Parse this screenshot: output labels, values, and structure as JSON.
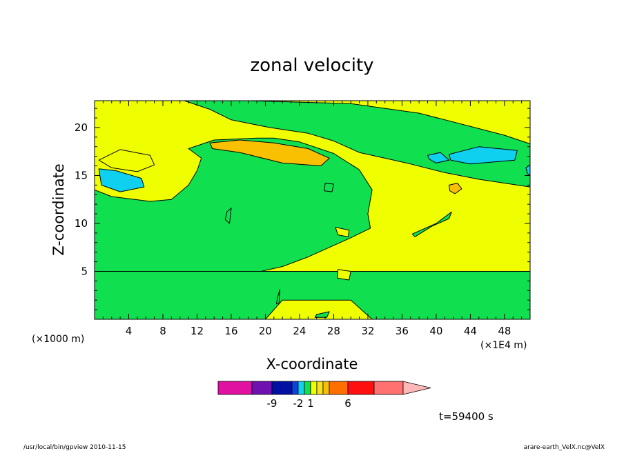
{
  "colors": {
    "background": "#ffffff",
    "frame": "#000000",
    "contour_line": "#000000"
  },
  "chart_data": {
    "type": "heatmap",
    "subtype": "filled-contour",
    "title": "zonal velocity",
    "xlabel": "X-coordinate",
    "ylabel": "Z-coordinate",
    "x_scale_note": "(×1E4 m)",
    "y_scale_note": "(×1000 m)",
    "xlim": [
      0,
      51
    ],
    "ylim": [
      0,
      22.8
    ],
    "x_ticks": [
      4,
      8,
      12,
      16,
      20,
      24,
      28,
      32,
      36,
      40,
      44,
      48
    ],
    "y_ticks": [
      5,
      10,
      15,
      20
    ],
    "grid": false,
    "timestamp": "t=59400 s",
    "footer_left": "/usr/local/bin/gpview  2010-11-15",
    "footer_right": "arare-earth_VelX.nc@VelX",
    "colorbar": {
      "orientation": "horizontal",
      "extend": "max",
      "colors": [
        "#e010a0",
        "#7010b0",
        "#0010a0",
        "#1040e0",
        "#10d0f0",
        "#10e050",
        "#f0ff00",
        "#f8e020",
        "#f8c000",
        "#ff6f00",
        "#ff1010",
        "#ff7070",
        "#ffb8b8"
      ],
      "labels": [
        "-9",
        "-2",
        "1",
        "6"
      ],
      "labeled_at_level": [
        -9,
        -2,
        1,
        6
      ]
    },
    "base_fill": {
      "band": "0 to 1",
      "color": "#f0ff00"
    },
    "regions": [
      {
        "band": "-1 to 0",
        "color": "#10e050",
        "x": [
          0,
          0,
          2,
          6.5,
          9,
          11,
          12,
          12.5,
          11,
          14,
          19,
          21,
          24,
          28,
          31,
          32.5,
          32,
          32.3,
          30,
          25,
          22,
          17,
          14,
          8,
          4,
          2,
          0
        ],
        "z": [
          18.5,
          13.5,
          12.8,
          12.3,
          12.5,
          14,
          15.5,
          16.8,
          17.8,
          18.7,
          18.9,
          18.9,
          18.5,
          17.3,
          15.6,
          13.5,
          11,
          9.5,
          8.5,
          6.5,
          5.5,
          4.5,
          3.2,
          2.5,
          3.4,
          4.3,
          5
        ]
      },
      {
        "band": "-1 to 0",
        "color": "#10e050",
        "x": [
          0,
          0,
          51,
          51,
          32.5,
          30,
          22,
          20
        ],
        "z": [
          0,
          5,
          5,
          0,
          0,
          2,
          2,
          0
        ]
      },
      {
        "band": "-1 to 0",
        "color": "#10e050",
        "x": [
          10.5,
          18,
          30,
          38,
          48,
          51,
          51,
          49.5,
          45,
          41,
          37,
          34,
          31,
          28,
          25,
          20.5,
          16,
          13.5
        ],
        "z": [
          22.8,
          22.8,
          22.5,
          21.5,
          19.2,
          18.3,
          13.8,
          14,
          14.6,
          15.3,
          16.2,
          16.8,
          17.4,
          18.6,
          19.4,
          20,
          20.8,
          21.9
        ]
      },
      {
        "band": "0 to 1",
        "color": "#f0ff00",
        "x": [
          0.5,
          3,
          6.5,
          7,
          5,
          2
        ],
        "z": [
          16.6,
          17.7,
          17.1,
          16.1,
          15.4,
          15.8
        ]
      },
      {
        "band": "1 to 2",
        "color": "#f8c000",
        "x": [
          13.5,
          17,
          21,
          25,
          27.5,
          26.5,
          22,
          17,
          13.8
        ],
        "z": [
          18.4,
          18.7,
          18.4,
          17.8,
          16.8,
          16,
          16.3,
          17.4,
          17.8
        ]
      },
      {
        "band": "-2 to -1",
        "color": "#10d0f0",
        "x": [
          0.5,
          2.5,
          5.5,
          5.8,
          3,
          0.8
        ],
        "z": [
          15.7,
          15.5,
          14.7,
          13.8,
          13.3,
          14
        ]
      },
      {
        "band": "-2 to -1",
        "color": "#10d0f0",
        "x": [
          41.5,
          45,
          49.5,
          49.2,
          44,
          41.7
        ],
        "z": [
          17.2,
          18,
          17.6,
          16.6,
          16.2,
          16.6
        ]
      },
      {
        "band": "-2 to -1",
        "color": "#10d0f0",
        "x": [
          39,
          40.5,
          41.5,
          40,
          39.2
        ],
        "z": [
          17.1,
          17.4,
          16.6,
          16.3,
          16.7
        ]
      },
      {
        "band": "-2 to -1",
        "color": "#10d0f0",
        "x": [
          50.5,
          51,
          51,
          50.7
        ],
        "z": [
          15.8,
          16.1,
          15,
          15.2
        ]
      },
      {
        "band": "1 to 2",
        "color": "#f8c000",
        "x": [
          41.5,
          42.5,
          43,
          42.2,
          41.6
        ],
        "z": [
          14,
          14.2,
          13.6,
          13.1,
          13.4
        ]
      },
      {
        "band": "-1 to 0",
        "color": "#10e050",
        "x": [
          37.2,
          40,
          41.8,
          41.5,
          39.5,
          37.5
        ],
        "z": [
          8.9,
          10,
          11.2,
          10.5,
          9.7,
          8.6
        ]
      },
      {
        "band": "0 to 1",
        "color": "#f0ff00",
        "x": [
          28.2,
          29.8,
          29.7,
          28.5
        ],
        "z": [
          9.6,
          9.3,
          8.6,
          8.8
        ]
      },
      {
        "band": "0 to 1",
        "color": "#f0ff00",
        "x": [
          28.5,
          30,
          29.8,
          28.4
        ],
        "z": [
          5.2,
          5,
          4.1,
          4.3
        ]
      },
      {
        "band": "-1 to 0",
        "color": "#10e050",
        "x": [
          27,
          28,
          27.8,
          26.9
        ],
        "z": [
          14.2,
          14.1,
          13.3,
          13.4
        ]
      },
      {
        "band": "-1 to 0",
        "color": "#10e050",
        "x": [
          15.5,
          16,
          15.8,
          15.3
        ],
        "z": [
          11.2,
          11.6,
          10,
          10.4
        ]
      },
      {
        "band": "-1 to 0",
        "color": "#10e050",
        "x": [
          21.4,
          21.7,
          21.6,
          21.3
        ],
        "z": [
          2.2,
          3.1,
          1.7,
          1.6
        ]
      },
      {
        "band": "-1 to 0",
        "color": "#10e050",
        "x": [
          26,
          27.5,
          27.2,
          25.8
        ],
        "z": [
          0.5,
          0.8,
          0.2,
          0.2
        ]
      }
    ]
  }
}
